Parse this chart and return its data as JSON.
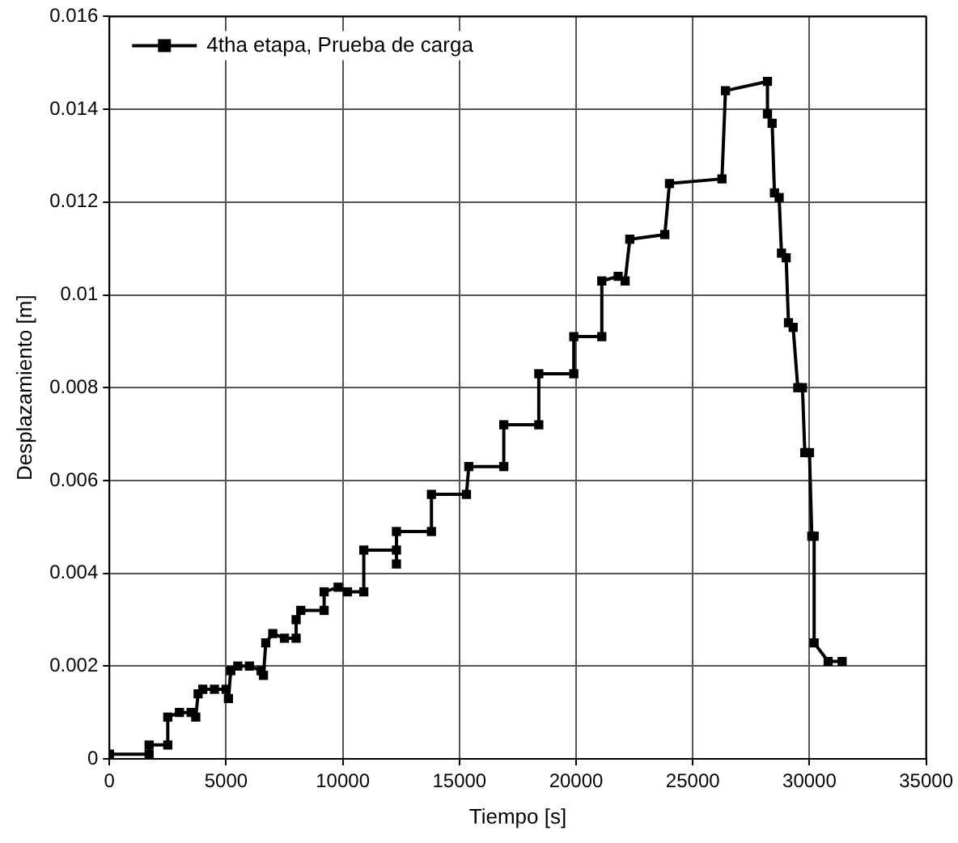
{
  "chart_data": {
    "type": "line",
    "xlabel": "Tiempo [s]",
    "ylabel": "Desplazamiento [m]",
    "xlim": [
      0,
      35000
    ],
    "xticks": [
      0,
      5000,
      10000,
      15000,
      20000,
      25000,
      30000,
      35000
    ],
    "ylim": [
      0,
      0.016
    ],
    "yticks": [
      0,
      0.002,
      0.004,
      0.006,
      0.008,
      0.01,
      0.012,
      0.014,
      0.016
    ],
    "grid": true,
    "legend": "top left",
    "marker": "square",
    "line_style": "solid",
    "series": [
      {
        "name": "4tha etapa, Prueba de carga",
        "color": "#000000",
        "x": [
          0,
          1700,
          1700,
          2500,
          2500,
          3000,
          3500,
          3700,
          3800,
          4000,
          4500,
          5000,
          5100,
          5200,
          5500,
          6000,
          6500,
          6600,
          6700,
          7000,
          7500,
          8000,
          8000,
          8200,
          9200,
          9200,
          9800,
          10200,
          10900,
          10900,
          12300,
          12300,
          12300,
          13800,
          13800,
          15300,
          15400,
          16900,
          16900,
          18400,
          18400,
          19900,
          19900,
          21100,
          21100,
          21800,
          22100,
          22300,
          23800,
          24000,
          26250,
          26400,
          28200,
          28200,
          28400,
          28500,
          28700,
          28800,
          29000,
          29100,
          29300,
          29500,
          29700,
          29800,
          30000,
          30100,
          30200,
          30200,
          30800,
          31400
        ],
        "values": [
          0.0001,
          0.0001,
          0.0003,
          0.0003,
          0.0009,
          0.001,
          0.001,
          0.0009,
          0.0014,
          0.0015,
          0.0015,
          0.0015,
          0.0013,
          0.0019,
          0.002,
          0.002,
          0.0019,
          0.0018,
          0.0025,
          0.0027,
          0.0026,
          0.0026,
          0.003,
          0.0032,
          0.0032,
          0.0036,
          0.0037,
          0.0036,
          0.0036,
          0.0045,
          0.0045,
          0.0042,
          0.0049,
          0.0049,
          0.0057,
          0.0057,
          0.0063,
          0.0063,
          0.0072,
          0.0072,
          0.0083,
          0.0083,
          0.0091,
          0.0091,
          0.0103,
          0.0104,
          0.0103,
          0.0112,
          0.0113,
          0.0124,
          0.0125,
          0.0144,
          0.0146,
          0.0139,
          0.0137,
          0.0122,
          0.0121,
          0.0109,
          0.0108,
          0.0094,
          0.0093,
          0.008,
          0.008,
          0.0066,
          0.0066,
          0.0048,
          0.0048,
          0.0025,
          0.0021,
          0.0021
        ]
      }
    ]
  }
}
